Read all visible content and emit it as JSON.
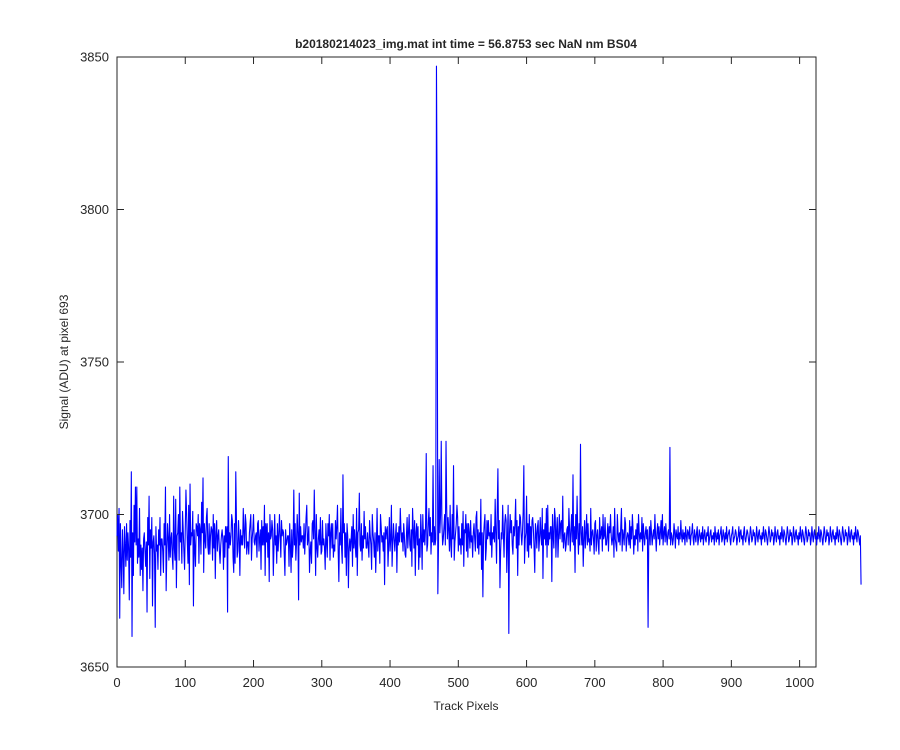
{
  "chart_data": {
    "type": "line",
    "title": "b20180214023_img.mat int time = 56.8753 sec  NaN nm BS04",
    "xlabel": "Track Pixels",
    "ylabel": "Signal (ADU) at pixel 693",
    "xlim": [
      0,
      1024
    ],
    "ylim": [
      3650,
      3850
    ],
    "x_ticks": [
      "0",
      "100",
      "200",
      "300",
      "400",
      "500",
      "600",
      "700",
      "800",
      "900",
      "1000"
    ],
    "y_ticks": [
      "3650",
      "3700",
      "3750",
      "3800",
      "3850"
    ],
    "grid": false,
    "legend": "none",
    "series": [
      {
        "color": "#0000ff",
        "x_start": 0,
        "x_step": 1,
        "values": [
          3693,
          3700,
          3688,
          3702,
          3666,
          3697,
          3684,
          3676,
          3695,
          3688,
          3674,
          3696,
          3690,
          3683,
          3697,
          3685,
          3694,
          3689,
          3672,
          3698,
          3686,
          3714,
          3660,
          3694,
          3680,
          3703,
          3691,
          3709,
          3690,
          3709,
          3684,
          3692,
          3686,
          3702,
          3680,
          3690,
          3682,
          3689,
          3675,
          3692,
          3694,
          3688,
          3683,
          3691,
          3668,
          3699,
          3690,
          3706,
          3679,
          3695,
          3689,
          3699,
          3670,
          3691,
          3693,
          3687,
          3663,
          3696,
          3688,
          3690,
          3682,
          3695,
          3690,
          3699,
          3680,
          3692,
          3692,
          3688,
          3681,
          3697,
          3690,
          3709,
          3675,
          3688,
          3697,
          3692,
          3685,
          3700,
          3686,
          3692,
          3694,
          3686,
          3682,
          3706,
          3689,
          3685,
          3705,
          3676,
          3693,
          3694,
          3700,
          3685,
          3709,
          3691,
          3694,
          3684,
          3701,
          3695,
          3688,
          3682,
          3695,
          3708,
          3700,
          3691,
          3684,
          3703,
          3677,
          3710,
          3690,
          3694,
          3693,
          3701,
          3670,
          3695,
          3689,
          3683,
          3697,
          3696,
          3693,
          3700,
          3684,
          3697,
          3695,
          3687,
          3704,
          3694,
          3712,
          3681,
          3697,
          3692,
          3689,
          3699,
          3702,
          3690,
          3687,
          3697,
          3687,
          3693,
          3696,
          3695,
          3685,
          3700,
          3689,
          3697,
          3679,
          3694,
          3698,
          3688,
          3693,
          3695,
          3688,
          3684,
          3690,
          3693,
          3695,
          3692,
          3682,
          3693,
          3686,
          3696,
          3691,
          3696,
          3668,
          3719,
          3689,
          3694,
          3690,
          3693,
          3700,
          3698,
          3686,
          3681,
          3697,
          3684,
          3714,
          3698,
          3686,
          3688,
          3698,
          3692,
          3680,
          3695,
          3690,
          3693,
          3690,
          3702,
          3694,
          3689,
          3700,
          3697,
          3687,
          3691,
          3691,
          3687,
          3694,
          3697,
          3700,
          3685,
          3692,
          3695,
          3700,
          3691,
          3690,
          3693,
          3694,
          3686,
          3697,
          3698,
          3688,
          3692,
          3695,
          3682,
          3698,
          3690,
          3696,
          3690,
          3703,
          3680,
          3697,
          3691,
          3697,
          3686,
          3694,
          3678,
          3700,
          3692,
          3693,
          3698,
          3695,
          3680,
          3690,
          3700,
          3690,
          3693,
          3684,
          3697,
          3688,
          3693,
          3700,
          3693,
          3686,
          3698,
          3693,
          3695,
          3694,
          3687,
          3680,
          3695,
          3690,
          3691,
          3693,
          3693,
          3683,
          3697,
          3690,
          3681,
          3695,
          3686,
          3690,
          3708,
          3690,
          3697,
          3685,
          3691,
          3700,
          3694,
          3672,
          3707,
          3690,
          3696,
          3691,
          3693,
          3693,
          3689,
          3697,
          3687,
          3693,
          3699,
          3703,
          3690,
          3692,
          3696,
          3681,
          3688,
          3691,
          3684,
          3697,
          3698,
          3692,
          3708,
          3694,
          3680,
          3700,
          3689,
          3686,
          3692,
          3695,
          3690,
          3699,
          3687,
          3688,
          3698,
          3690,
          3692,
          3689,
          3682,
          3697,
          3691,
          3686,
          3697,
          3693,
          3700,
          3685,
          3694,
          3697,
          3689,
          3697,
          3686,
          3690,
          3688,
          3698,
          3692,
          3696,
          3703,
          3688,
          3678,
          3694,
          3690,
          3702,
          3689,
          3684,
          3713,
          3694,
          3697,
          3686,
          3694,
          3680,
          3697,
          3693,
          3676,
          3689,
          3692,
          3688,
          3692,
          3696,
          3683,
          3700,
          3689,
          3695,
          3690,
          3686,
          3702,
          3680,
          3694,
          3695,
          3707,
          3690,
          3688,
          3697,
          3685,
          3693,
          3689,
          3701,
          3692,
          3696,
          3689,
          3689,
          3694,
          3690,
          3686,
          3698,
          3693,
          3690,
          3682,
          3700,
          3694,
          3691,
          3686,
          3694,
          3681,
          3690,
          3702,
          3688,
          3693,
          3693,
          3684,
          3700,
          3696,
          3691,
          3693,
          3688,
          3694,
          3677,
          3696,
          3692,
          3695,
          3696,
          3683,
          3690,
          3699,
          3688,
          3692,
          3703,
          3683,
          3691,
          3697,
          3692,
          3688,
          3693,
          3697,
          3681,
          3694,
          3690,
          3696,
          3691,
          3702,
          3695,
          3691,
          3694,
          3688,
          3697,
          3693,
          3687,
          3686,
          3693,
          3699,
          3689,
          3694,
          3700,
          3690,
          3688,
          3695,
          3683,
          3702,
          3695,
          3689,
          3698,
          3680,
          3694,
          3697,
          3690,
          3696,
          3682,
          3692,
          3686,
          3700,
          3693,
          3682,
          3700,
          3691,
          3695,
          3690,
          3696,
          3720,
          3688,
          3690,
          3697,
          3702,
          3693,
          3699,
          3687,
          3694,
          3691,
          3716,
          3690,
          3696,
          3690,
          3692,
          3847,
          3800,
          3674,
          3690,
          3718,
          3694,
          3700,
          3724,
          3697,
          3690,
          3692,
          3696,
          3700,
          3690,
          3724,
          3702,
          3692,
          3699,
          3695,
          3688,
          3703,
          3690,
          3686,
          3700,
          3692,
          3716,
          3685,
          3691,
          3694,
          3697,
          3703,
          3699,
          3688,
          3696,
          3690,
          3692,
          3687,
          3697,
          3690,
          3701,
          3683,
          3695,
          3694,
          3700,
          3688,
          3697,
          3686,
          3697,
          3694,
          3689,
          3698,
          3691,
          3693,
          3686,
          3694,
          3697,
          3692,
          3688,
          3699,
          3701,
          3689,
          3695,
          3687,
          3694,
          3690,
          3705,
          3682,
          3694,
          3673,
          3693,
          3697,
          3700,
          3685,
          3689,
          3698,
          3692,
          3698,
          3693,
          3694,
          3690,
          3700,
          3686,
          3694,
          3692,
          3696,
          3691,
          3705,
          3694,
          3684,
          3701,
          3715,
          3692,
          3698,
          3676,
          3688,
          3694,
          3692,
          3703,
          3694,
          3686,
          3697,
          3700,
          3698,
          3681,
          3692,
          3703,
          3661,
          3694,
          3700,
          3694,
          3698,
          3690,
          3687,
          3696,
          3693,
          3697,
          3705,
          3689,
          3698,
          3680,
          3696,
          3690,
          3700,
          3699,
          3694,
          3690,
          3694,
          3701,
          3716,
          3684,
          3692,
          3694,
          3706,
          3688,
          3697,
          3686,
          3700,
          3690,
          3696,
          3689,
          3698,
          3699,
          3695,
          3689,
          3681,
          3697,
          3694,
          3689,
          3696,
          3698,
          3688,
          3692,
          3699,
          3693,
          3690,
          3702,
          3679,
          3695,
          3692,
          3697,
          3690,
          3702,
          3686,
          3703,
          3690,
          3694,
          3692,
          3696,
          3696,
          3678,
          3700,
          3693,
          3689,
          3702,
          3699,
          3686,
          3695,
          3699,
          3686,
          3693,
          3700,
          3692,
          3697,
          3698,
          3691,
          3706,
          3689,
          3693,
          3694,
          3688,
          3690,
          3695,
          3696,
          3690,
          3702,
          3695,
          3688,
          3695,
          3700,
          3691,
          3713,
          3690,
          3696,
          3681,
          3700,
          3692,
          3706,
          3694,
          3687,
          3697,
          3690,
          3723,
          3694,
          3690,
          3696,
          3683,
          3692,
          3698,
          3689,
          3694,
          3700,
          3690,
          3697,
          3691,
          3692,
          3688,
          3702,
          3690,
          3694,
          3695,
          3692,
          3687,
          3697,
          3698,
          3688,
          3693,
          3695,
          3690,
          3687,
          3699,
          3692,
          3694,
          3696,
          3688,
          3700,
          3692,
          3693,
          3699,
          3690,
          3690,
          3693,
          3697,
          3688,
          3696,
          3694,
          3700,
          3693,
          3690,
          3692,
          3696,
          3686,
          3702,
          3692,
          3690,
          3688,
          3700,
          3694,
          3691,
          3694,
          3690,
          3696,
          3702,
          3688,
          3695,
          3693,
          3690,
          3699,
          3697,
          3688,
          3692,
          3694,
          3693,
          3690,
          3698,
          3689,
          3696,
          3692,
          3700,
          3695,
          3687,
          3693,
          3690,
          3695,
          3692,
          3697,
          3688,
          3700,
          3694,
          3691,
          3694,
          3692,
          3699,
          3688,
          3697,
          3693,
          3690,
          3694,
          3696,
          3692,
          3695,
          3663,
          3692,
          3696,
          3690,
          3698,
          3694,
          3690,
          3693,
          3695,
          3692,
          3700,
          3693,
          3688,
          3694,
          3697,
          3692,
          3696,
          3690,
          3694,
          3698,
          3692,
          3700,
          3690,
          3694,
          3696,
          3691,
          3697,
          3693,
          3690,
          3694,
          3695,
          3692,
          3722,
          3690,
          3694,
          3693,
          3690,
          3692,
          3697,
          3694,
          3689,
          3695,
          3693,
          3692,
          3696,
          3690,
          3694,
          3692,
          3698,
          3693,
          3691,
          3695,
          3692,
          3694,
          3690,
          3696,
          3693,
          3691,
          3695,
          3694,
          3692,
          3696,
          3690,
          3693,
          3694,
          3697,
          3692,
          3690,
          3695,
          3693,
          3691,
          3694,
          3696,
          3690,
          3692,
          3695,
          3693,
          3691,
          3694,
          3692,
          3696,
          3690,
          3693,
          3695,
          3692,
          3691,
          3694,
          3693,
          3696,
          3690,
          3692,
          3694,
          3695,
          3691,
          3693,
          3692,
          3694,
          3690,
          3696,
          3693,
          3691,
          3694,
          3692,
          3695,
          3690,
          3693,
          3694,
          3696,
          3691,
          3692,
          3695,
          3693,
          3690,
          3694,
          3692,
          3696,
          3691,
          3693,
          3694,
          3695,
          3692,
          3690,
          3693,
          3694,
          3696,
          3691,
          3692,
          3693,
          3695,
          3694,
          3690,
          3692,
          3693,
          3696,
          3691,
          3694,
          3695,
          3692,
          3693,
          3690,
          3694,
          3696,
          3692,
          3691,
          3693,
          3695,
          3694,
          3692,
          3690,
          3693,
          3696,
          3694,
          3691,
          3692,
          3695,
          3693,
          3694,
          3690,
          3692,
          3696,
          3693,
          3691,
          3694,
          3695,
          3692,
          3693,
          3690,
          3694,
          3692,
          3696,
          3693,
          3691,
          3695,
          3694,
          3692,
          3690,
          3693,
          3696,
          3694,
          3691,
          3692,
          3695,
          3693,
          3694,
          3690,
          3692,
          3696,
          3693,
          3691,
          3694,
          3695,
          3692,
          3693,
          3690,
          3694,
          3692,
          3696,
          3693,
          3691,
          3695,
          3694,
          3692,
          3690,
          3693,
          3696,
          3694,
          3691,
          3692,
          3695,
          3693,
          3694,
          3690,
          3692,
          3696,
          3693,
          3691,
          3694,
          3695,
          3692,
          3693,
          3690,
          3694,
          3692,
          3696,
          3693,
          3691,
          3695,
          3694,
          3692,
          3690,
          3693,
          3696,
          3694,
          3691,
          3692,
          3695,
          3693,
          3694,
          3690,
          3692,
          3696,
          3693,
          3691,
          3694,
          3695,
          3692,
          3693,
          3690,
          3694,
          3692,
          3696,
          3693,
          3691,
          3695,
          3694,
          3692,
          3690,
          3693,
          3696,
          3694,
          3691,
          3692,
          3695,
          3693,
          3694,
          3690,
          3692,
          3696,
          3693,
          3691,
          3694,
          3695,
          3692,
          3693,
          3690,
          3694,
          3692,
          3696,
          3693,
          3691,
          3695,
          3694,
          3692,
          3690,
          3693,
          3696,
          3694,
          3691,
          3692,
          3695,
          3693,
          3694,
          3690,
          3692,
          3696,
          3693,
          3691,
          3694,
          3695,
          3692,
          3693,
          3690,
          3694,
          3692,
          3696,
          3693,
          3691,
          3695,
          3694,
          3692,
          3690,
          3693,
          3677
        ]
      }
    ]
  }
}
